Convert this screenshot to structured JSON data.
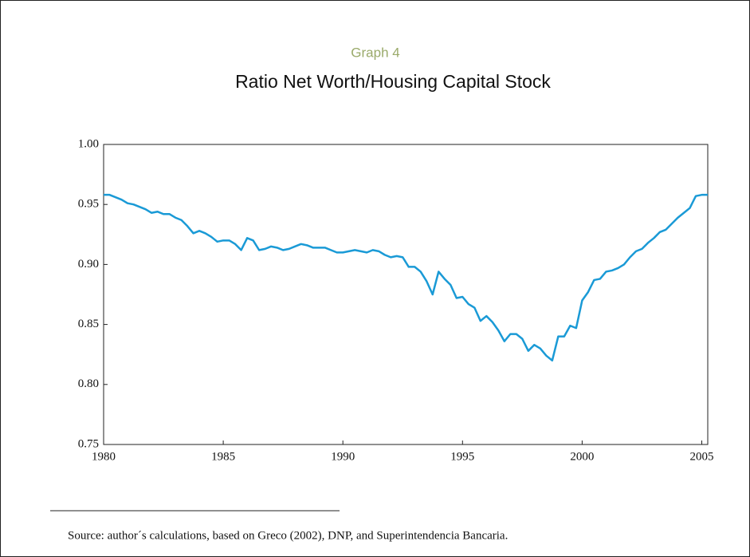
{
  "chart_data": {
    "type": "line",
    "graph_label": "Graph 4",
    "title": "Ratio Net Worth/Housing Capital Stock",
    "source": "Source: author´s calculations, based on Greco (2002), DNP, and Superintendencia Bancaria.",
    "x": [
      1980,
      1980.25,
      1980.5,
      1980.75,
      1981,
      1981.25,
      1981.5,
      1981.75,
      1982,
      1982.25,
      1982.5,
      1982.75,
      1983,
      1983.25,
      1983.5,
      1983.75,
      1984,
      1984.25,
      1984.5,
      1984.75,
      1985,
      1985.25,
      1985.5,
      1985.75,
      1986,
      1986.25,
      1986.5,
      1986.75,
      1987,
      1987.25,
      1987.5,
      1987.75,
      1988,
      1988.25,
      1988.5,
      1988.75,
      1989,
      1989.25,
      1989.5,
      1989.75,
      1990,
      1990.25,
      1990.5,
      1990.75,
      1991,
      1991.25,
      1991.5,
      1991.75,
      1992,
      1992.25,
      1992.5,
      1992.75,
      1993,
      1993.25,
      1993.5,
      1993.75,
      1994,
      1994.25,
      1994.5,
      1994.75,
      1995,
      1995.25,
      1995.5,
      1995.75,
      1996,
      1996.25,
      1996.5,
      1996.75,
      1997,
      1997.25,
      1997.5,
      1997.75,
      1998,
      1998.25,
      1998.5,
      1998.75,
      1999,
      1999.25,
      1999.5,
      1999.75,
      2000,
      2000.25,
      2000.5,
      2000.75,
      2001,
      2001.25,
      2001.5,
      2001.75,
      2002,
      2002.25,
      2002.5,
      2002.75,
      2003,
      2003.25,
      2003.5,
      2003.75,
      2004,
      2004.25,
      2004.5,
      2004.75,
      2005,
      2005.25
    ],
    "series": [
      {
        "color": "#1a9ad6",
        "values": [
          0.958,
          0.958,
          0.956,
          0.954,
          0.951,
          0.95,
          0.948,
          0.946,
          0.943,
          0.944,
          0.942,
          0.942,
          0.939,
          0.937,
          0.932,
          0.926,
          0.928,
          0.926,
          0.923,
          0.919,
          0.92,
          0.92,
          0.917,
          0.912,
          0.922,
          0.92,
          0.912,
          0.913,
          0.915,
          0.914,
          0.912,
          0.913,
          0.915,
          0.917,
          0.916,
          0.914,
          0.914,
          0.914,
          0.912,
          0.91,
          0.91,
          0.911,
          0.912,
          0.911,
          0.91,
          0.912,
          0.911,
          0.908,
          0.906,
          0.907,
          0.906,
          0.898,
          0.898,
          0.894,
          0.886,
          0.875,
          0.894,
          0.888,
          0.883,
          0.872,
          0.873,
          0.867,
          0.864,
          0.853,
          0.857,
          0.852,
          0.845,
          0.836,
          0.842,
          0.842,
          0.838,
          0.828,
          0.833,
          0.83,
          0.824,
          0.82,
          0.84,
          0.84,
          0.849,
          0.847,
          0.87,
          0.877,
          0.887,
          0.888,
          0.894,
          0.895,
          0.897,
          0.9,
          0.906,
          0.911,
          0.913,
          0.918,
          0.922,
          0.927,
          0.929,
          0.934,
          0.939,
          0.943,
          0.947,
          0.957,
          0.958,
          0.958
        ]
      }
    ],
    "xlim": [
      1980,
      2005.25
    ],
    "xticks": [
      1980,
      1985,
      1990,
      1995,
      2000,
      2005
    ],
    "ylim": [
      0.75,
      1.0
    ],
    "yticks": [
      {
        "value": 1.0,
        "label": "1.00"
      },
      0.95,
      {
        "value": 0.9,
        "label": "0.90"
      },
      0.85,
      {
        "value": 0.8,
        "label": "0.80"
      },
      0.75
    ]
  }
}
